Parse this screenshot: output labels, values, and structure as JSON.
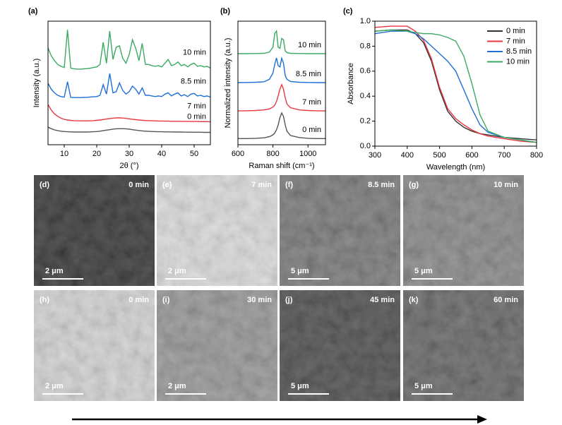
{
  "chart_data": [
    {
      "type": "line",
      "label": "(a)",
      "xlabel": "2θ (°)",
      "ylabel": "Intensity (a.u.)",
      "x": [
        5,
        6,
        7,
        8,
        9,
        10,
        11,
        12,
        13,
        14,
        15,
        16,
        17,
        18,
        19,
        20,
        21,
        22,
        23,
        24,
        25,
        26,
        27,
        28,
        29,
        30,
        31,
        32,
        33,
        34,
        35,
        36,
        37,
        38,
        39,
        40,
        41,
        42,
        43,
        44,
        45,
        46,
        47,
        48,
        49,
        50,
        51,
        52,
        53,
        54,
        55
      ],
      "xlim": [
        5,
        55
      ],
      "xticks": [
        10,
        20,
        30,
        40,
        50
      ],
      "ylim": [
        0,
        10
      ],
      "series": [
        {
          "name": "0 min",
          "color": "#555555",
          "values": [
            1.43,
            1.3,
            1.2,
            1.14,
            1.1,
            1.07,
            1.05,
            1.04,
            1.03,
            1.03,
            1.03,
            1.03,
            1.03,
            1.04,
            1.05,
            1.07,
            1.1,
            1.14,
            1.18,
            1.22,
            1.26,
            1.29,
            1.3,
            1.3,
            1.29,
            1.26,
            1.22,
            1.18,
            1.15,
            1.12,
            1.1,
            1.08,
            1.07,
            1.06,
            1.05,
            1.05,
            1.04,
            1.04,
            1.04,
            1.03,
            1.03,
            1.03,
            1.02,
            1.02,
            1.02,
            1.01,
            1.01,
            1.01,
            1.0,
            1.0,
            1.0
          ]
        },
        {
          "name": "7 min",
          "color": "#e8383d",
          "values": [
            3.26,
            2.8,
            2.5,
            2.3,
            2.15,
            2.05,
            2.0,
            1.97,
            1.95,
            1.94,
            1.93,
            1.93,
            1.93,
            1.94,
            1.95,
            1.97,
            2.0,
            2.04,
            2.08,
            2.12,
            2.15,
            2.17,
            2.17,
            2.16,
            2.13,
            2.1,
            2.06,
            2.03,
            2.0,
            1.98,
            1.96,
            1.95,
            1.94,
            1.93,
            1.92,
            1.92,
            1.91,
            1.91,
            1.9,
            1.9,
            1.9,
            1.89,
            1.89,
            1.89,
            1.88,
            1.88,
            1.88,
            1.87,
            1.87,
            1.87,
            1.86
          ]
        },
        {
          "name": "8.5 min",
          "color": "#1f6fd6",
          "values": [
            4.97,
            4.5,
            4.2,
            4.0,
            3.9,
            3.85,
            5.1,
            3.83,
            3.82,
            3.82,
            3.82,
            3.83,
            3.84,
            3.86,
            3.88,
            3.9,
            4.0,
            4.86,
            4.1,
            5.77,
            4.2,
            4.3,
            5.0,
            4.4,
            4.1,
            4.3,
            4.74,
            4.5,
            4.1,
            4.6,
            4.0,
            4.0,
            3.95,
            3.9,
            3.95,
            3.9,
            4.1,
            4.2,
            3.95,
            4.1,
            4.2,
            3.95,
            4.05,
            3.9,
            4.1,
            4.15,
            3.95,
            4.0,
            3.9,
            3.95,
            3.85
          ]
        },
        {
          "name": "10 min",
          "color": "#3aaa63",
          "values": [
            7.83,
            7.2,
            6.8,
            6.5,
            6.35,
            6.25,
            9.3,
            6.2,
            6.15,
            6.12,
            6.12,
            6.14,
            6.16,
            6.2,
            6.25,
            6.3,
            6.5,
            8.3,
            6.6,
            9.2,
            6.9,
            7.9,
            8.0,
            7.0,
            6.6,
            7.3,
            8.5,
            7.8,
            6.8,
            8.2,
            6.5,
            6.5,
            6.4,
            6.35,
            6.4,
            6.3,
            6.6,
            6.9,
            6.4,
            6.5,
            6.7,
            6.4,
            6.5,
            6.3,
            6.5,
            6.6,
            6.35,
            6.4,
            6.3,
            6.35,
            6.2
          ]
        }
      ]
    },
    {
      "type": "line",
      "label": "(b)",
      "xlabel": "Raman shift (cm⁻¹)",
      "ylabel": "Normalized intensity (a.u.)",
      "x": [
        600,
        650,
        700,
        750,
        780,
        800,
        810,
        820,
        830,
        840,
        850,
        860,
        870,
        880,
        900,
        950,
        1000,
        1050,
        1100
      ],
      "xlim": [
        600,
        1100
      ],
      "xticks": [
        600,
        800,
        1000
      ],
      "ylim": [
        0,
        10
      ],
      "series": [
        {
          "name": "0 min",
          "color": "#555555",
          "values": [
            0.5,
            0.5,
            0.52,
            0.56,
            0.65,
            0.8,
            0.95,
            1.2,
            1.6,
            2.2,
            2.57,
            2.3,
            1.6,
            1.1,
            0.75,
            0.58,
            0.52,
            0.5,
            0.5
          ]
        },
        {
          "name": "7 min",
          "color": "#e8383d",
          "values": [
            2.74,
            2.75,
            2.77,
            2.82,
            2.9,
            3.05,
            3.2,
            3.5,
            3.95,
            4.5,
            4.86,
            4.5,
            3.8,
            3.3,
            3.0,
            2.82,
            2.77,
            2.75,
            2.74
          ]
        },
        {
          "name": "8.5 min",
          "color": "#1f6fd6",
          "values": [
            5.03,
            5.04,
            5.06,
            5.1,
            5.3,
            5.8,
            6.5,
            7.03,
            6.4,
            6.3,
            7.0,
            6.6,
            5.6,
            5.3,
            5.12,
            5.06,
            5.04,
            5.03,
            5.03
          ]
        },
        {
          "name": "10 min",
          "color": "#3aaa63",
          "values": [
            7.37,
            7.37,
            7.38,
            7.4,
            7.5,
            7.9,
            9.0,
            9.2,
            7.9,
            7.8,
            8.6,
            8.5,
            7.6,
            7.45,
            7.4,
            7.38,
            7.37,
            7.37,
            7.37
          ]
        }
      ]
    },
    {
      "type": "line",
      "label": "(c)",
      "xlabel": "Wavelength (nm)",
      "ylabel": "Absorbance",
      "x": [
        300,
        350,
        400,
        425,
        450,
        475,
        500,
        525,
        550,
        575,
        600,
        625,
        650,
        700,
        750,
        800
      ],
      "xlim": [
        300,
        800
      ],
      "xticks": [
        300,
        400,
        500,
        600,
        700,
        800
      ],
      "ylim": [
        0,
        1
      ],
      "yticks": [
        {
          "value": 0,
          "label": "0.0"
        },
        0.2,
        0.4,
        0.6,
        0.8,
        {
          "value": 1,
          "label": "1.0"
        }
      ],
      "legend": "upper right",
      "series": [
        {
          "name": "0 min",
          "color": "#333333",
          "values": [
            0.92,
            0.93,
            0.93,
            0.9,
            0.83,
            0.68,
            0.45,
            0.28,
            0.2,
            0.15,
            0.12,
            0.1,
            0.09,
            0.07,
            0.06,
            0.05
          ]
        },
        {
          "name": "7 min",
          "color": "#e8383d",
          "values": [
            0.95,
            0.96,
            0.96,
            0.92,
            0.85,
            0.7,
            0.47,
            0.3,
            0.22,
            0.17,
            0.13,
            0.1,
            0.08,
            0.06,
            0.04,
            0.03
          ]
        },
        {
          "name": "8.5 min",
          "color": "#1f6fd6",
          "values": [
            0.9,
            0.92,
            0.92,
            0.9,
            0.86,
            0.8,
            0.74,
            0.68,
            0.6,
            0.45,
            0.3,
            0.17,
            0.11,
            0.07,
            0.05,
            0.03
          ]
        },
        {
          "name": "10 min",
          "color": "#3aaa63",
          "values": [
            0.92,
            0.93,
            0.92,
            0.91,
            0.9,
            0.9,
            0.89,
            0.87,
            0.84,
            0.72,
            0.5,
            0.25,
            0.12,
            0.07,
            0.05,
            0.03
          ]
        }
      ]
    }
  ],
  "images": [
    {
      "label": "(d)",
      "time": "0 min",
      "scale": "2 μm"
    },
    {
      "label": "(e)",
      "time": "7 min",
      "scale": "2 μm"
    },
    {
      "label": "(f)",
      "time": "8.5 min",
      "scale": "5 μm"
    },
    {
      "label": "(g)",
      "time": "10 min",
      "scale": "5 μm"
    },
    {
      "label": "(h)",
      "time": "0 min",
      "scale": "2 μm"
    },
    {
      "label": "(i)",
      "time": "30 min",
      "scale": "2 μm"
    },
    {
      "label": "(j)",
      "time": "45 min",
      "scale": "5 μm"
    },
    {
      "label": "(k)",
      "time": "60 min",
      "scale": "5 μm"
    }
  ]
}
